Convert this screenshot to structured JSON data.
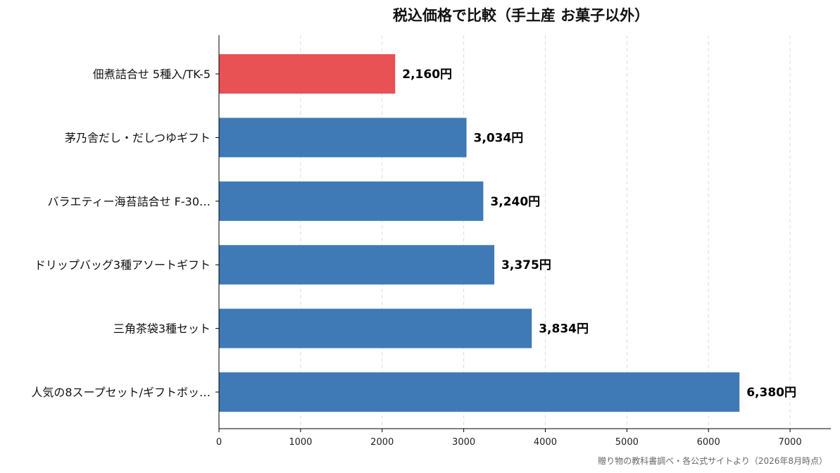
{
  "chart_data": {
    "type": "bar",
    "orientation": "horizontal",
    "title": "税込価格で比較（手土産 お菓子以外）",
    "xlabel": "",
    "ylabel": "",
    "categories": [
      "佃煮詰合せ 5種入/TK-5",
      "茅乃舎だし・だしつゆギフト",
      "バラエティー海苔詰合せ F-30…",
      "ドリップバッグ3種アソートギフト",
      "三角茶袋3種セット",
      "人気の8スープセット/ギフトボッ…"
    ],
    "values": [
      2160,
      3034,
      3240,
      3375,
      3834,
      6380
    ],
    "value_labels": [
      "2,160円",
      "3,034円",
      "3,240円",
      "3,375円",
      "3,834円",
      "6,380円"
    ],
    "bar_colors": [
      "#e85254",
      "#3f7ab6",
      "#3f7ab6",
      "#3f7ab6",
      "#3f7ab6",
      "#3f7ab6"
    ],
    "xlim": [
      0,
      7500
    ],
    "xticks": [
      0,
      1000,
      2000,
      3000,
      4000,
      5000,
      6000,
      7000
    ],
    "xtick_labels": [
      "0",
      "1000",
      "2000",
      "3000",
      "4000",
      "5000",
      "6000",
      "7000"
    ],
    "grid": "vertical dashed",
    "source": "贈り物の教科書調べ・各公式サイトより（2026年8月時点）"
  }
}
